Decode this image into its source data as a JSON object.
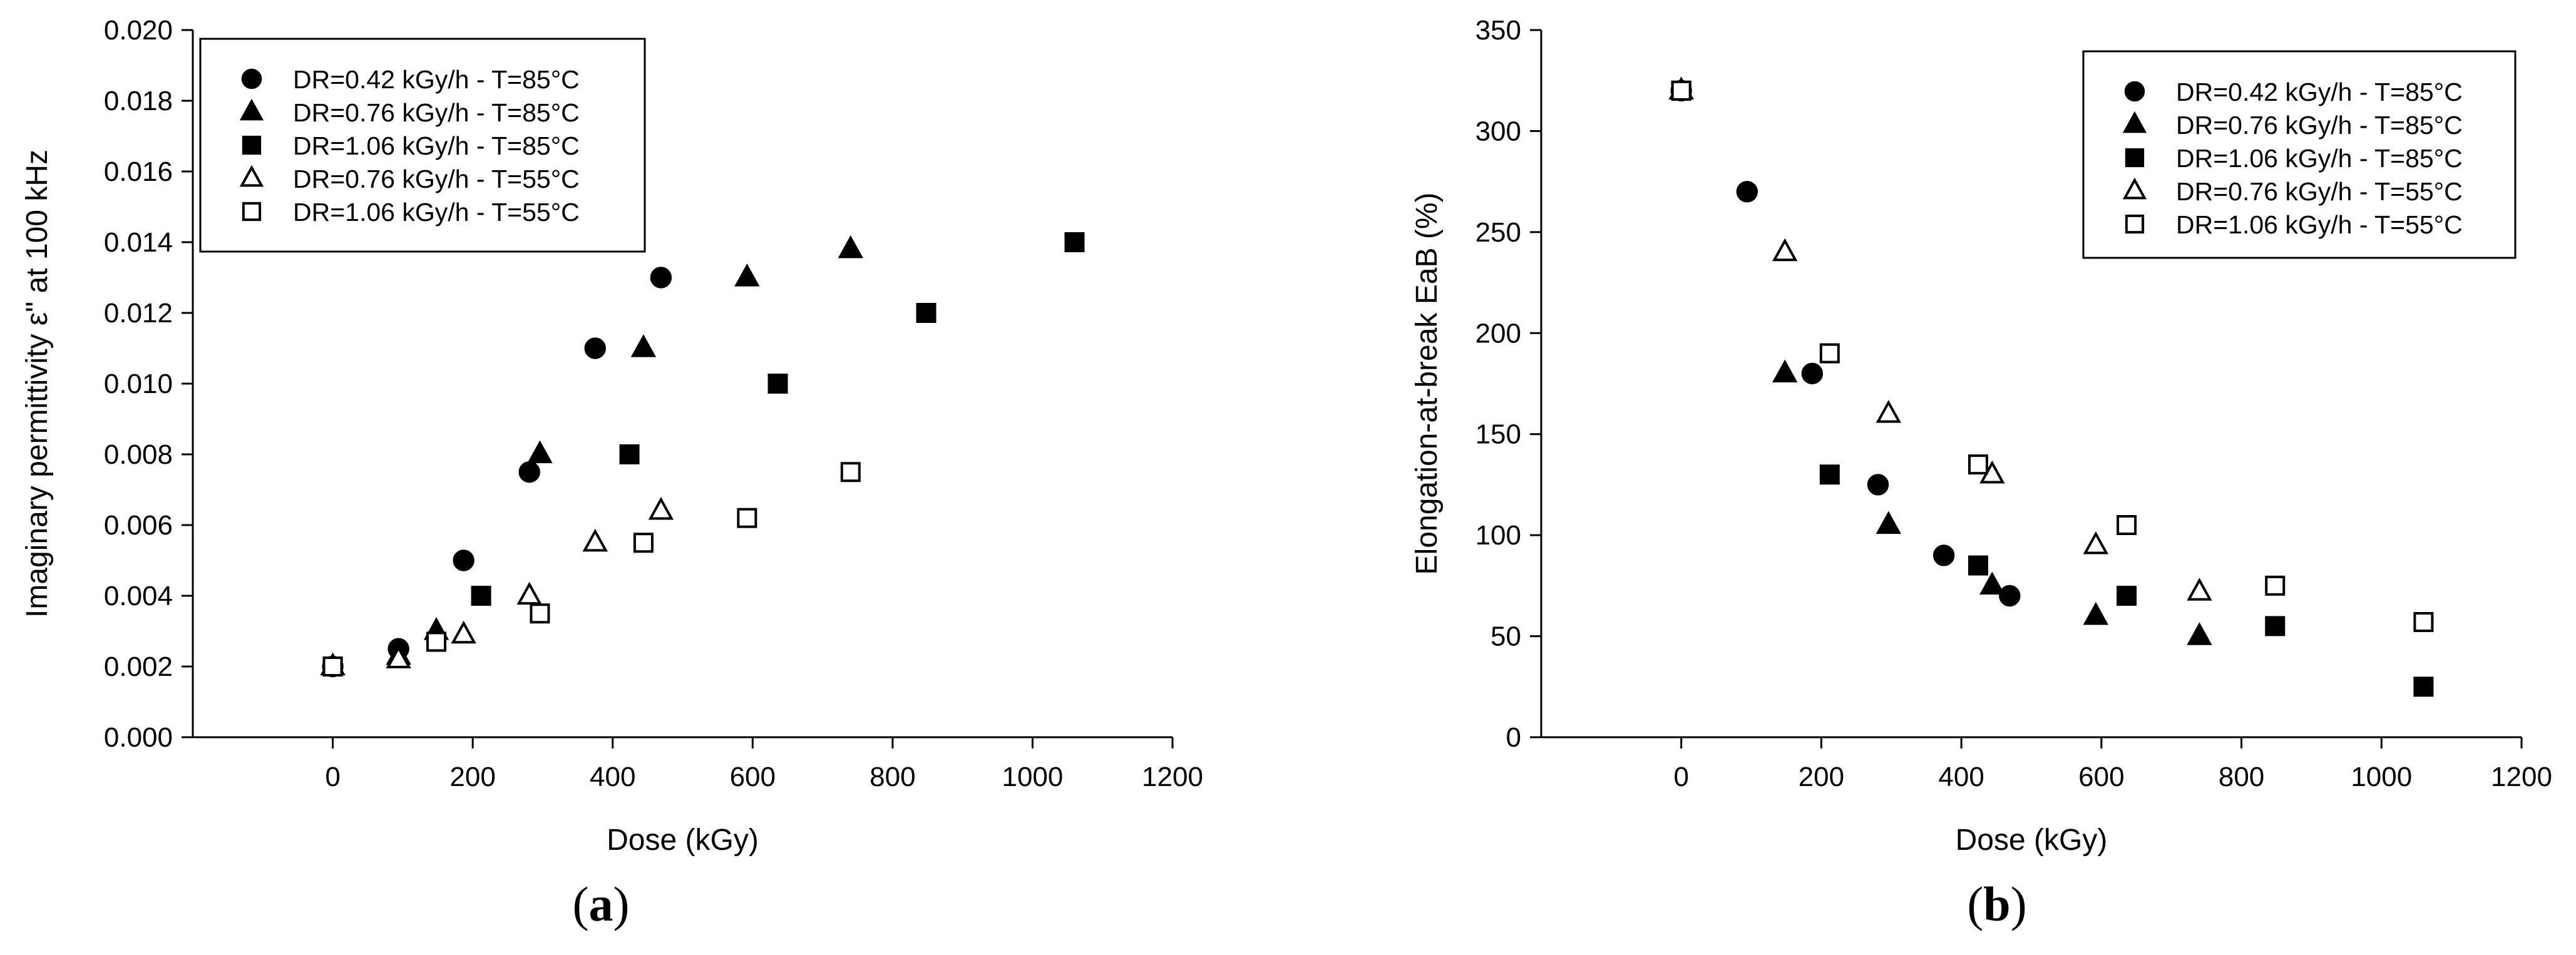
{
  "chart_data": [
    {
      "type": "scatter",
      "panel": "a",
      "xlabel": "Dose (kGy)",
      "ylabel": "Imaginary permittivity ε\" at 100 kHz",
      "xlim": [
        -200,
        1200
      ],
      "ylim": [
        0,
        0.02
      ],
      "xticks": [
        "0",
        "200",
        "400",
        "600",
        "800",
        "1000",
        "1200"
      ],
      "yticks": [
        "0.000",
        "0.002",
        "0.004",
        "0.006",
        "0.008",
        "0.010",
        "0.012",
        "0.014",
        "0.016",
        "0.018",
        "0.020"
      ],
      "grid": false,
      "legend_position": "top-left",
      "series": [
        {
          "name": "DR=0.42 kGy/h - T=85°C",
          "marker": "circle-filled",
          "x": [
            0,
            94,
            187,
            281,
            375,
            469
          ],
          "y": [
            0.002,
            0.0025,
            0.005,
            0.0075,
            0.011,
            0.013
          ]
        },
        {
          "name": "DR=0.76 kGy/h - T=85°C",
          "marker": "triangle-filled",
          "x": [
            0,
            94,
            148,
            296,
            444,
            592,
            740
          ],
          "y": [
            0.002,
            0.0023,
            0.003,
            0.008,
            0.011,
            0.013,
            0.0138
          ]
        },
        {
          "name": "DR=1.06 kGy/h - T=85°C",
          "marker": "square-filled",
          "x": [
            0,
            148,
            212,
            424,
            636,
            848,
            1060
          ],
          "y": [
            0.002,
            0.0027,
            0.004,
            0.008,
            0.01,
            0.012,
            0.014
          ]
        },
        {
          "name": "DR=0.76 kGy/h - T=55°C",
          "marker": "triangle-open",
          "x": [
            0,
            94,
            187,
            281,
            375,
            469
          ],
          "y": [
            0.002,
            0.0022,
            0.0029,
            0.004,
            0.0055,
            0.0064
          ]
        },
        {
          "name": "DR=1.06 kGy/h - T=55°C",
          "marker": "square-open",
          "x": [
            0,
            148,
            296,
            444,
            592,
            740
          ],
          "y": [
            0.002,
            0.0027,
            0.0035,
            0.0055,
            0.0062,
            0.0075
          ]
        }
      ]
    },
    {
      "type": "scatter",
      "panel": "b",
      "xlabel": "Dose (kGy)",
      "ylabel": "Elongation-at-break EaB (%)",
      "xlim": [
        -200,
        1200
      ],
      "ylim": [
        0,
        350
      ],
      "xticks": [
        "0",
        "200",
        "400",
        "600",
        "800",
        "1000",
        "1200"
      ],
      "yticks": [
        "0",
        "50",
        "100",
        "150",
        "200",
        "250",
        "300",
        "350"
      ],
      "grid": false,
      "legend_position": "top-right",
      "series": [
        {
          "name": "DR=0.42 kGy/h - T=85°C",
          "marker": "circle-filled",
          "x": [
            0,
            94,
            187,
            281,
            375,
            469
          ],
          "y": [
            320,
            270,
            180,
            125,
            90,
            70
          ]
        },
        {
          "name": "DR=0.76 kGy/h - T=85°C",
          "marker": "triangle-filled",
          "x": [
            0,
            148,
            296,
            444,
            592,
            740
          ],
          "y": [
            320,
            180,
            105,
            75,
            60,
            50
          ]
        },
        {
          "name": "DR=1.06 kGy/h - T=85°C",
          "marker": "square-filled",
          "x": [
            0,
            212,
            424,
            636,
            848,
            1060
          ],
          "y": [
            320,
            130,
            85,
            70,
            55,
            25
          ]
        },
        {
          "name": "DR=0.76 kGy/h - T=55°C",
          "marker": "triangle-open",
          "x": [
            0,
            148,
            296,
            444,
            592,
            740
          ],
          "y": [
            320,
            240,
            160,
            130,
            95,
            72
          ]
        },
        {
          "name": "DR=1.06 kGy/h - T=55°C",
          "marker": "square-open",
          "x": [
            0,
            212,
            424,
            636,
            848,
            1060
          ],
          "y": [
            320,
            190,
            135,
            105,
            75,
            57
          ]
        }
      ]
    }
  ],
  "captions": {
    "a": "a",
    "b": "b"
  }
}
